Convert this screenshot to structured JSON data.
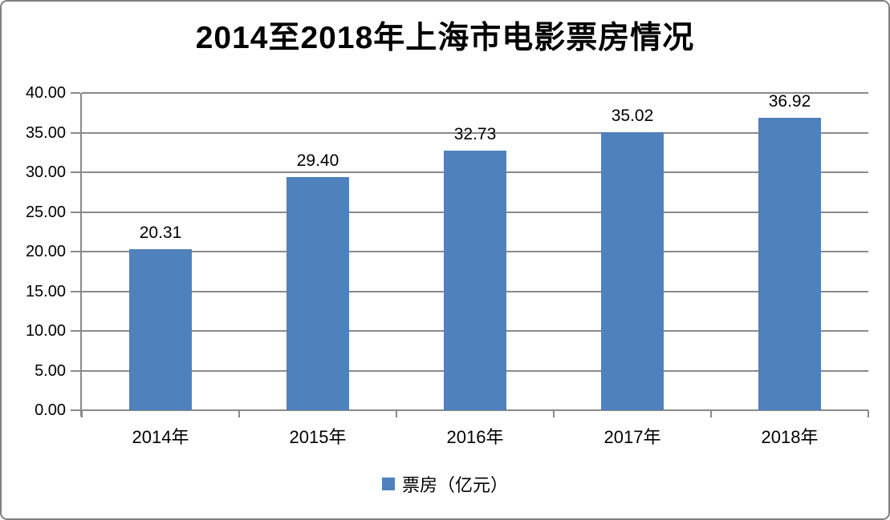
{
  "chart_data": {
    "type": "bar",
    "title": "2014至2018年上海市电影票房情况",
    "categories": [
      "2014年",
      "2015年",
      "2016年",
      "2017年",
      "2018年"
    ],
    "values": [
      20.31,
      29.4,
      32.73,
      35.02,
      36.92
    ],
    "value_labels": [
      "20.31",
      "29.40",
      "32.73",
      "35.02",
      "36.92"
    ],
    "xlabel": "",
    "ylabel": "",
    "ylim": [
      0,
      40
    ],
    "ytick_step": 5,
    "ytick_labels": [
      "0.00",
      "5.00",
      "10.00",
      "15.00",
      "20.00",
      "25.00",
      "30.00",
      "35.00",
      "40.00"
    ],
    "grid": true,
    "legend_position": "bottom",
    "legend": [
      {
        "label": "票房（亿元）",
        "color": "#4f81bd"
      }
    ],
    "colors": {
      "bar": "#4f81bd",
      "gridline": "#8a8a8a",
      "axis": "#8a8a8a",
      "frame_border": "#7f7f7f",
      "text": "#000000"
    }
  }
}
